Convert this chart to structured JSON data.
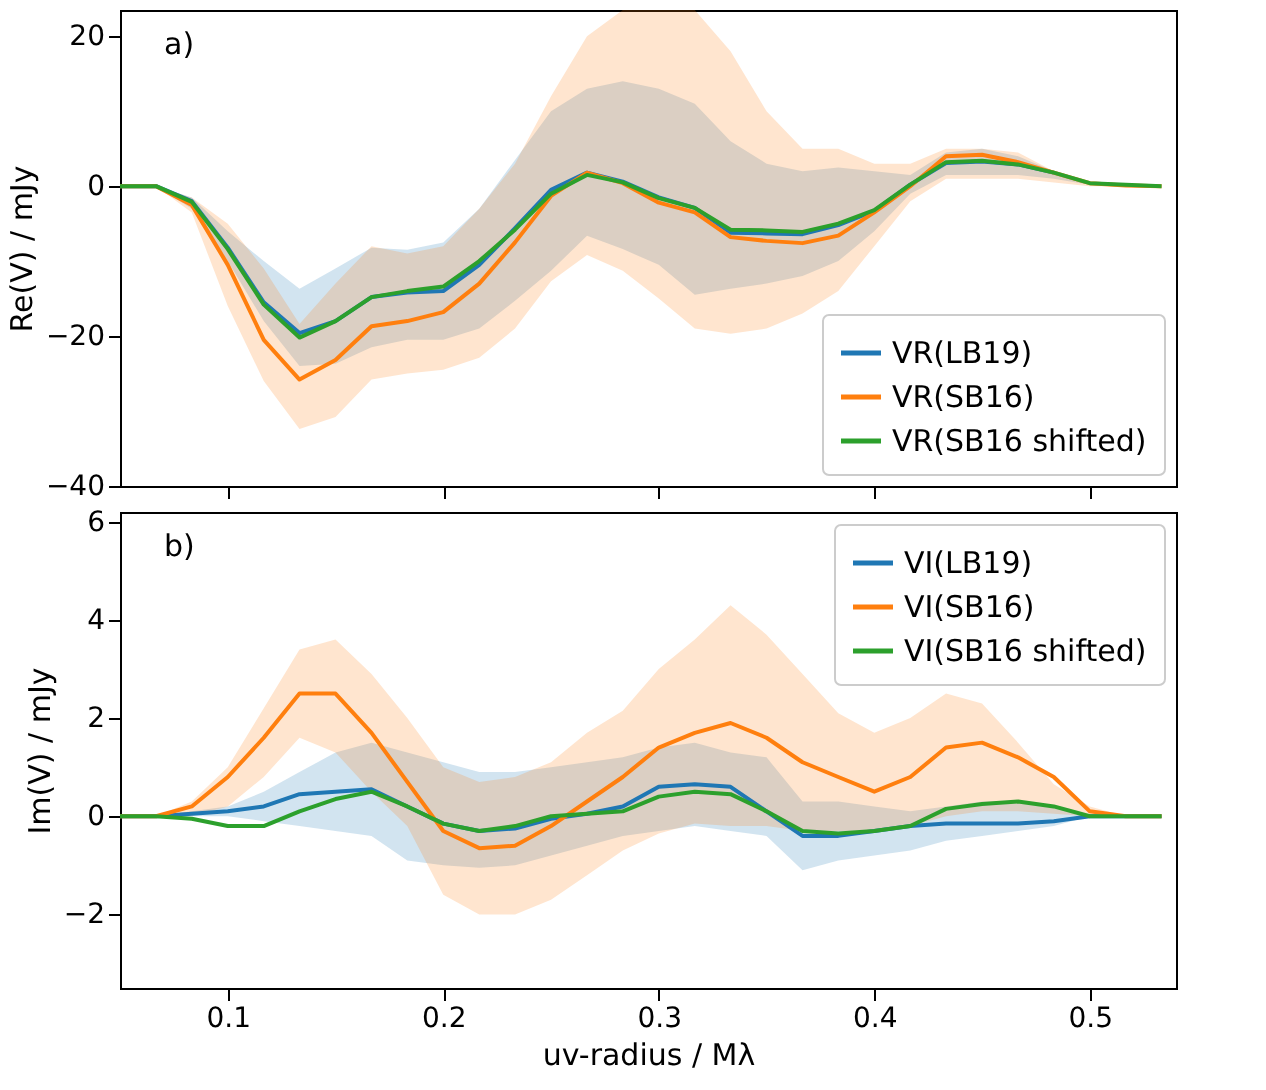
{
  "chart_data": [
    {
      "type": "line",
      "annotations": [
        "a)"
      ],
      "ylabel": "Re(V) / mJy",
      "xlim": [
        0.05,
        0.54
      ],
      "xticks": [
        0.1,
        0.2,
        0.3,
        0.4,
        0.5
      ],
      "ylim": [
        -40,
        23.5
      ],
      "yticks": [
        {
          "value": -40,
          "label": "−40"
        },
        {
          "value": -20,
          "label": "−20"
        },
        0,
        20
      ],
      "tick_labels": "y",
      "grid": false,
      "legend": "bottom right",
      "line_style": "solid",
      "marker": "none",
      "x": [
        0.05,
        0.0667,
        0.0833,
        0.1,
        0.1167,
        0.1333,
        0.15,
        0.1667,
        0.1833,
        0.2,
        0.2167,
        0.2333,
        0.25,
        0.2667,
        0.2833,
        0.3,
        0.3167,
        0.3333,
        0.35,
        0.3667,
        0.3833,
        0.4,
        0.4167,
        0.4333,
        0.45,
        0.4667,
        0.4833,
        0.5,
        0.5167,
        0.5333
      ],
      "series": [
        {
          "name": "VR(LB19)",
          "color": "#1f77b4",
          "values": [
            0,
            0,
            -2.0,
            -8.2,
            -15.5,
            -19.6,
            -18,
            -14.8,
            -14.2,
            -14,
            -10.5,
            -5.6,
            -0.5,
            1.8,
            0.6,
            -1.5,
            -2.9,
            -6.2,
            -6.3,
            -6.4,
            -5.2,
            -3.3,
            0.2,
            3.1,
            3.3,
            2.9,
            1.8,
            null,
            null,
            null
          ],
          "lower": [
            0,
            0,
            -3,
            -10,
            -18,
            -24,
            -23.7,
            -21.5,
            -20.5,
            -20.5,
            -19,
            -15.3,
            -11.3,
            -6.6,
            -8.4,
            -10.5,
            -14.5,
            -13.7,
            -13,
            -12,
            -10,
            -6,
            -1,
            1.5,
            1.5,
            1.5,
            1.0,
            0.2,
            0,
            0
          ],
          "upper": [
            0,
            0,
            -1.5,
            -6,
            -10,
            -13.7,
            -11,
            -8.2,
            -8.5,
            -7.5,
            -3,
            3.5,
            10,
            13,
            14,
            13,
            11,
            6,
            3,
            2,
            2.5,
            2,
            1.5,
            4.5,
            5,
            4,
            2,
            0.5,
            0.1,
            0
          ]
        },
        {
          "name": "VR(SB16)",
          "color": "#ff7f0e",
          "values": [
            0,
            0,
            -2.5,
            -10.5,
            -20.5,
            -25.8,
            -23.2,
            -18.7,
            -18,
            -16.8,
            -13,
            -7.5,
            -1.3,
            1.8,
            0.4,
            -2.2,
            -3.5,
            -6.8,
            -7.3,
            -7.6,
            -6.6,
            -3.5,
            0,
            4,
            4.2,
            3.2,
            1.8,
            0.4,
            0.1,
            0
          ],
          "lower": [
            0,
            0,
            -3.5,
            -16,
            -26,
            -32.4,
            -30.8,
            -25.8,
            -25,
            -24.5,
            -22.9,
            -19,
            -12.7,
            -9.2,
            -11.3,
            -15,
            -19,
            -19.7,
            -19,
            -17,
            -14,
            -8,
            -2,
            1,
            1,
            1,
            0.5,
            0,
            0,
            0
          ],
          "upper": [
            0,
            0,
            -1.5,
            -5,
            -11,
            -18.4,
            -13,
            -8,
            -9,
            -8,
            -3,
            3,
            12,
            20,
            23.5,
            23.5,
            23.5,
            18,
            10,
            5,
            5,
            3,
            3,
            5,
            5,
            4.5,
            2,
            0.5,
            0.1,
            0
          ]
        },
        {
          "name": "VR(SB16 shifted)",
          "color": "#2ca02c",
          "values": [
            0,
            0,
            -2.1,
            -8.4,
            -15.8,
            -20.2,
            -18,
            -14.8,
            -14,
            -13.4,
            -10,
            -5.8,
            -1,
            1.5,
            0.5,
            -1.6,
            -2.9,
            -5.8,
            -5.9,
            -6.1,
            -5,
            -3.2,
            0.2,
            3.2,
            3.4,
            2.9,
            1.8,
            0.4,
            0.2,
            0
          ]
        }
      ]
    },
    {
      "type": "line",
      "annotations": [
        "b)"
      ],
      "ylabel": "Im(V) / mJy",
      "xlabel": "uv-radius / Mλ",
      "xlim": [
        0.05,
        0.54
      ],
      "xticks": [
        0.1,
        0.2,
        0.3,
        0.4,
        0.5
      ],
      "ylim": [
        -3.5,
        6.2
      ],
      "yticks": [
        {
          "value": -2,
          "label": "−2"
        },
        0,
        2,
        4,
        6
      ],
      "grid": false,
      "legend": "top right",
      "line_style": "solid",
      "marker": "none",
      "x": [
        0.05,
        0.0667,
        0.0833,
        0.1,
        0.1167,
        0.1333,
        0.15,
        0.1667,
        0.1833,
        0.2,
        0.2167,
        0.2333,
        0.25,
        0.2667,
        0.2833,
        0.3,
        0.3167,
        0.3333,
        0.35,
        0.3667,
        0.3833,
        0.4,
        0.4167,
        0.4333,
        0.45,
        0.4667,
        0.4833,
        0.5,
        0.5167,
        0.5333
      ],
      "series": [
        {
          "name": "VI(LB19)",
          "color": "#1f77b4",
          "values": [
            0,
            0,
            0.05,
            0.1,
            0.2,
            0.45,
            0.5,
            0.55,
            0.2,
            -0.15,
            -0.3,
            -0.25,
            -0.05,
            0.05,
            0.2,
            0.6,
            0.65,
            0.6,
            0.1,
            -0.4,
            -0.4,
            -0.3,
            -0.2,
            -0.15,
            -0.15,
            -0.15,
            -0.1,
            0,
            0,
            0
          ],
          "lower": [
            0,
            0,
            0,
            0,
            -0.1,
            -0.2,
            -0.3,
            -0.4,
            -0.9,
            -1,
            -1.05,
            -1.0,
            -0.8,
            -0.6,
            -0.4,
            -0.3,
            -0.2,
            -0.3,
            -0.4,
            -1.1,
            -0.9,
            -0.8,
            -0.7,
            -0.5,
            -0.4,
            -0.3,
            -0.2,
            0,
            0,
            0
          ],
          "upper": [
            0,
            0,
            0.1,
            0.2,
            0.5,
            0.9,
            1.3,
            1.5,
            1.3,
            1.1,
            0.9,
            0.9,
            1,
            1.1,
            1.2,
            1.4,
            1.5,
            1.3,
            1.2,
            0.3,
            0.3,
            0.2,
            0.1,
            0.2,
            0.3,
            0.3,
            0.2,
            0,
            0,
            0
          ]
        },
        {
          "name": "VI(SB16)",
          "color": "#ff7f0e",
          "values": [
            0,
            0,
            0.2,
            0.8,
            1.6,
            2.5,
            2.5,
            1.7,
            0.7,
            -0.3,
            -0.65,
            -0.6,
            -0.2,
            0.3,
            0.8,
            1.4,
            1.7,
            1.9,
            1.6,
            1.1,
            0.8,
            0.5,
            0.8,
            1.4,
            1.5,
            1.2,
            0.8,
            0.1,
            0,
            0
          ],
          "lower": [
            0,
            0,
            0,
            0.2,
            0.8,
            1.6,
            1.3,
            0.5,
            -0.2,
            -1.6,
            -2,
            -2,
            -1.7,
            -1.2,
            -0.7,
            -0.35,
            -0.15,
            -0.2,
            -0.2,
            -0.3,
            -0.3,
            -0.3,
            -0.2,
            0,
            0.1,
            0.1,
            0.05,
            0,
            0,
            0
          ],
          "upper": [
            0,
            0,
            0.3,
            1.0,
            2.2,
            3.4,
            3.6,
            2.9,
            2.0,
            1.0,
            0.7,
            0.8,
            1.1,
            1.7,
            2.15,
            3.0,
            3.6,
            4.3,
            3.7,
            2.9,
            2.1,
            1.7,
            2.0,
            2.5,
            2.3,
            1.5,
            0.65,
            0.2,
            0,
            0
          ]
        },
        {
          "name": "VI(SB16 shifted)",
          "color": "#2ca02c",
          "values": [
            0,
            0,
            -0.05,
            -0.2,
            -0.2,
            0.1,
            0.35,
            0.5,
            0.2,
            -0.15,
            -0.3,
            -0.2,
            0,
            0.05,
            0.1,
            0.4,
            0.5,
            0.45,
            0.1,
            -0.3,
            -0.35,
            -0.3,
            -0.2,
            0.15,
            0.25,
            0.3,
            0.2,
            0,
            0,
            0
          ]
        }
      ]
    }
  ]
}
